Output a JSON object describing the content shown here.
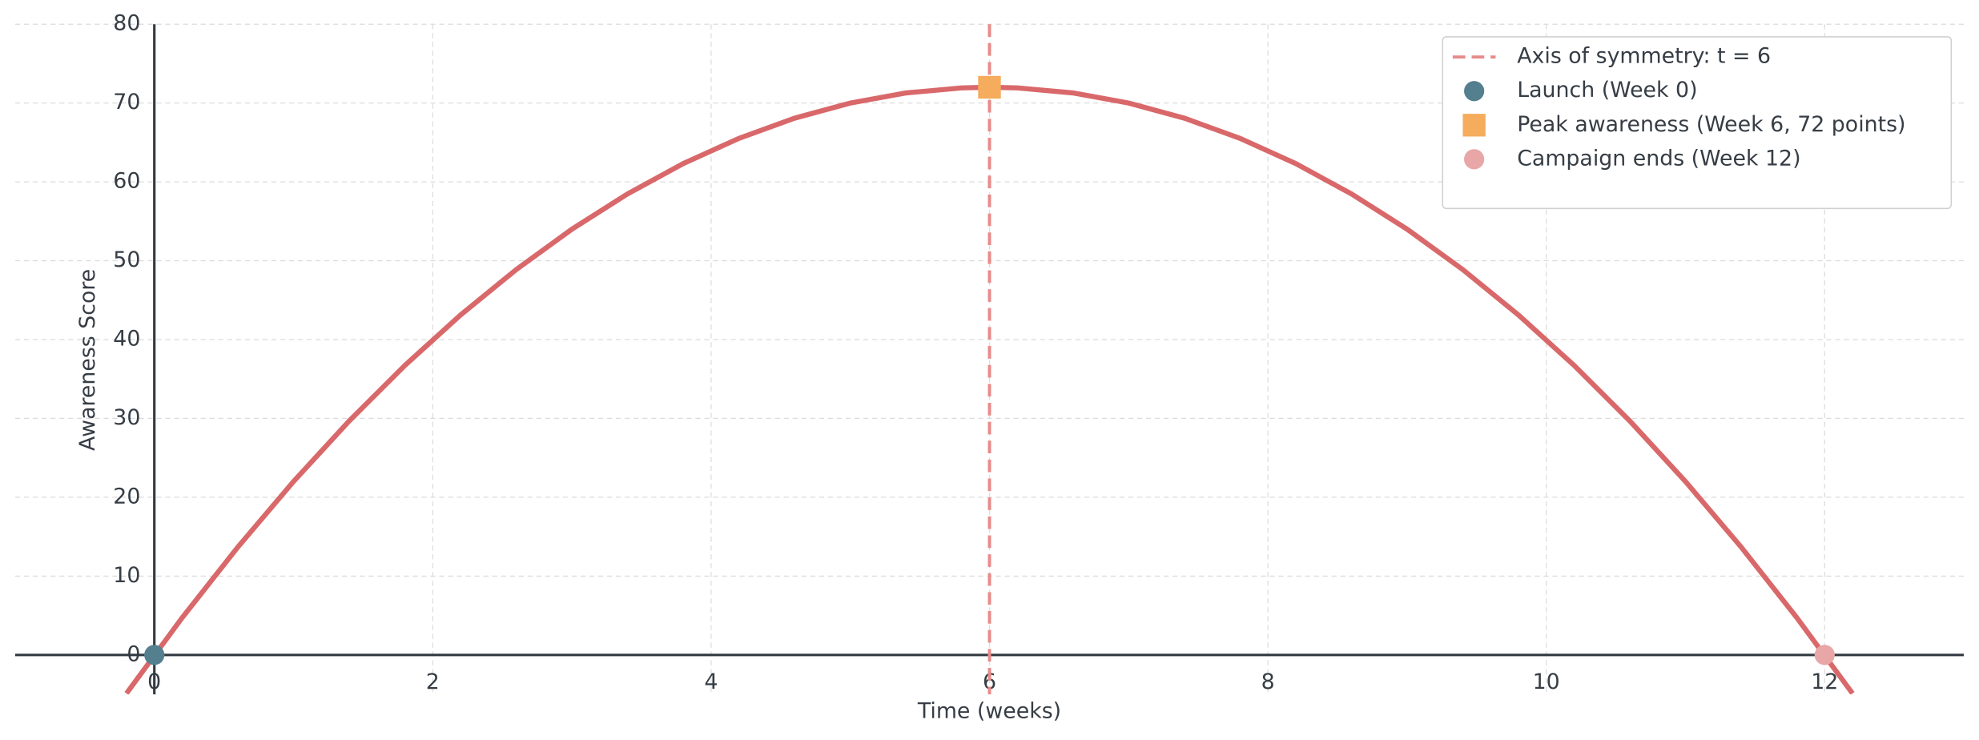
{
  "chart_data": {
    "type": "line",
    "xlabel": "Time (weeks)",
    "ylabel": "Awareness Score",
    "xlim": [
      -1,
      13
    ],
    "ylim": [
      -5,
      80
    ],
    "xticks": [
      0,
      2,
      4,
      6,
      8,
      10,
      12
    ],
    "yticks": [
      0,
      10,
      20,
      30,
      40,
      50,
      60,
      70,
      80
    ],
    "grid": true,
    "legend": "upper right",
    "x": [
      -0.2,
      0.2,
      0.6,
      1.0,
      1.4,
      1.8,
      2.2,
      2.6,
      3.0,
      3.4,
      3.8,
      4.2,
      4.6,
      5.0,
      5.4,
      5.8,
      6.0,
      6.2,
      6.6,
      7.0,
      7.4,
      7.8,
      8.2,
      8.6,
      9.0,
      9.4,
      9.8,
      10.2,
      10.6,
      11.0,
      11.4,
      11.8,
      12.2
    ],
    "series": [
      {
        "color": "#d9686a",
        "values": [
          -4.88,
          4.72,
          13.68,
          22,
          29.68,
          36.72,
          43.12,
          48.88,
          54,
          58.48,
          62.32,
          65.52,
          68.08,
          70,
          71.28,
          71.92,
          72,
          71.92,
          71.28,
          70,
          68.08,
          65.52,
          62.32,
          58.48,
          54,
          48.88,
          43.12,
          36.72,
          29.68,
          22,
          13.68,
          4.72,
          -4.88
        ]
      }
    ],
    "vline": {
      "name": "Axis of symmetry: t = 6",
      "x": 6,
      "color": "#e88b8b"
    },
    "points": [
      {
        "name": "Launch (Week 0)",
        "x": 0,
        "y": 0,
        "color": "#537f8f",
        "marker": "circle"
      },
      {
        "name": "Peak awareness (Week 6, 72 points)",
        "x": 6,
        "y": 72,
        "color": "#f5ac5c",
        "marker": "square"
      },
      {
        "name": "Campaign ends (Week 12)",
        "x": 12,
        "y": 0,
        "color": "#e8a6a6",
        "marker": "circle"
      }
    ]
  }
}
